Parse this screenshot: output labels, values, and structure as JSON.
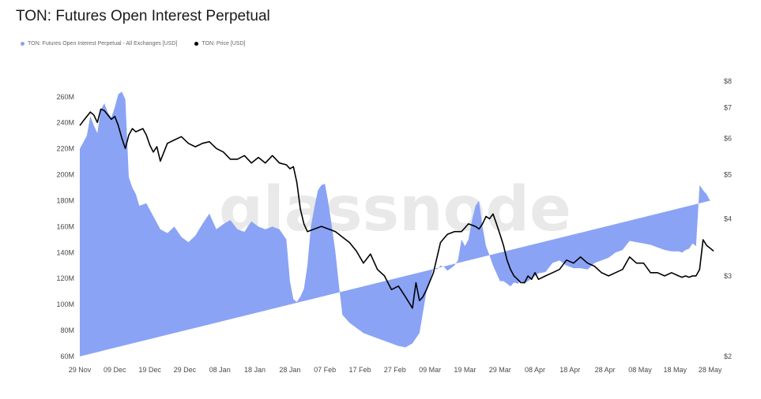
{
  "title": "TON: Futures Open Interest Perpetual",
  "legend": [
    {
      "label": "TON: Futures Open Interest Perpetual - All Exchanges [USD]",
      "color": "#8aa3f5"
    },
    {
      "label": "TON: Price [USD]",
      "color": "#000000"
    }
  ],
  "watermark": "glassnode",
  "chart_data": {
    "type": "area",
    "x_ticks": [
      "29 Nov",
      "09 Dec",
      "19 Dec",
      "29 Dec",
      "08 Jan",
      "18 Jan",
      "28 Jan",
      "07 Feb",
      "17 Feb",
      "27 Feb",
      "09 Mar",
      "19 Mar",
      "29 Mar",
      "08 Apr",
      "18 Apr",
      "28 Apr",
      "08 May",
      "18 May",
      "28 May"
    ],
    "left_axis": {
      "ticks": [
        "60M",
        "80M",
        "100M",
        "120M",
        "140M",
        "160M",
        "180M",
        "200M",
        "220M",
        "240M",
        "260M"
      ],
      "tick_values": [
        60,
        80,
        100,
        120,
        140,
        160,
        180,
        200,
        220,
        240,
        260
      ],
      "range": [
        60,
        272
      ],
      "unit": "M USD"
    },
    "right_axis": {
      "ticks": [
        "$2",
        "$3",
        "$4",
        "$5",
        "$6",
        "$7",
        "$8"
      ],
      "tick_values": [
        2,
        3,
        4,
        5,
        6,
        7,
        8
      ],
      "scale": "log",
      "range": [
        2,
        8
      ]
    },
    "series": [
      {
        "name": "TON: Futures Open Interest Perpetual - All Exchanges [USD]",
        "axis": "left",
        "style": "area",
        "color": "#8aa3f5",
        "x_day_offsets": [
          0,
          1,
          2,
          3,
          4,
          5,
          6,
          7,
          8,
          9,
          10,
          11,
          12,
          13,
          14,
          15,
          16,
          17,
          19,
          21,
          23,
          25,
          27,
          29,
          31,
          33,
          35,
          37,
          39,
          41,
          43,
          45,
          47,
          49,
          51,
          53,
          55,
          57,
          59,
          60,
          61,
          62,
          63,
          64,
          65,
          66,
          67,
          68,
          69,
          70,
          71,
          72,
          73,
          74,
          75,
          77,
          79,
          81,
          83,
          85,
          87,
          89,
          91,
          93,
          95,
          97,
          99,
          101,
          102,
          103,
          104,
          105,
          106,
          107,
          108,
          109,
          110,
          111,
          112,
          113,
          114,
          115,
          116,
          117,
          118,
          119,
          120,
          121,
          122,
          123,
          124,
          125,
          126,
          127,
          128,
          129,
          130,
          131,
          133,
          135,
          137,
          139,
          141,
          143,
          145,
          147,
          149,
          151,
          153,
          155,
          157,
          159,
          161,
          163,
          165,
          167,
          169,
          171,
          172,
          173,
          174,
          175,
          176,
          177,
          178,
          179,
          180,
          181
        ],
        "values": [
          220,
          225,
          230,
          245,
          238,
          232,
          250,
          255,
          248,
          244,
          252,
          262,
          264,
          258,
          198,
          190,
          185,
          176,
          178,
          168,
          158,
          155,
          160,
          152,
          148,
          153,
          162,
          170,
          158,
          162,
          165,
          158,
          156,
          164,
          160,
          158,
          160,
          158,
          150,
          118,
          104,
          102,
          106,
          112,
          130,
          160,
          175,
          188,
          192,
          193,
          178,
          160,
          140,
          115,
          92,
          86,
          82,
          78,
          76,
          74,
          72,
          70,
          68,
          67,
          70,
          78,
          110,
          128,
          127,
          130,
          129,
          126,
          128,
          130,
          134,
          150,
          145,
          150,
          165,
          176,
          180,
          160,
          145,
          138,
          130,
          124,
          118,
          118,
          116,
          114,
          117,
          116,
          118,
          116,
          118,
          120,
          122,
          124,
          125,
          132,
          134,
          130,
          128,
          128,
          127,
          132,
          134,
          136,
          140,
          142,
          149,
          148,
          147,
          146,
          144,
          142,
          141,
          141,
          140,
          142,
          143,
          147,
          145,
          192,
          188,
          185,
          180
        ]
      },
      {
        "name": "TON: Price [USD]",
        "axis": "right",
        "style": "line",
        "color": "#000000",
        "x_day_offsets": [
          0,
          1,
          2,
          3,
          4,
          5,
          6,
          7,
          8,
          9,
          10,
          11,
          12,
          13,
          14,
          15,
          16,
          17,
          18,
          19,
          20,
          21,
          22,
          23,
          25,
          27,
          29,
          31,
          33,
          35,
          37,
          39,
          41,
          43,
          45,
          47,
          49,
          51,
          53,
          55,
          57,
          59,
          60,
          61,
          62,
          63,
          64,
          65,
          67,
          69,
          71,
          73,
          75,
          77,
          79,
          81,
          83,
          85,
          87,
          89,
          91,
          93,
          95,
          96,
          97,
          98,
          99,
          101,
          103,
          105,
          107,
          109,
          111,
          113,
          114,
          115,
          116,
          117,
          118,
          119,
          120,
          121,
          122,
          123,
          124,
          125,
          126,
          127,
          128,
          129,
          130,
          131,
          133,
          135,
          137,
          139,
          141,
          143,
          145,
          147,
          149,
          151,
          153,
          155,
          157,
          159,
          161,
          163,
          165,
          167,
          169,
          171,
          172,
          173,
          174,
          175,
          176,
          177,
          178,
          179,
          180,
          181
        ],
        "values": [
          6.4,
          6.55,
          6.7,
          6.85,
          6.75,
          6.5,
          6.95,
          6.9,
          6.75,
          6.6,
          6.7,
          6.4,
          6.0,
          5.7,
          6.1,
          6.3,
          6.2,
          6.25,
          6.3,
          6.1,
          5.8,
          5.6,
          5.75,
          5.35,
          5.85,
          5.95,
          6.05,
          5.85,
          5.75,
          5.85,
          5.9,
          5.7,
          5.6,
          5.4,
          5.4,
          5.5,
          5.3,
          5.45,
          5.3,
          5.5,
          5.3,
          5.25,
          5.15,
          5.2,
          4.8,
          4.2,
          3.9,
          3.75,
          3.8,
          3.85,
          3.8,
          3.75,
          3.65,
          3.55,
          3.4,
          3.2,
          3.35,
          3.1,
          3.0,
          2.8,
          2.85,
          2.7,
          2.55,
          2.9,
          2.65,
          2.7,
          2.8,
          3.05,
          3.55,
          3.7,
          3.75,
          3.75,
          3.9,
          3.85,
          3.8,
          3.9,
          4.05,
          4.0,
          4.1,
          3.9,
          3.7,
          3.5,
          3.25,
          3.1,
          3.0,
          2.95,
          2.9,
          2.9,
          3.0,
          2.95,
          3.05,
          2.95,
          3.0,
          3.05,
          3.1,
          3.25,
          3.2,
          3.3,
          3.2,
          3.15,
          3.05,
          3.0,
          3.05,
          3.1,
          3.3,
          3.2,
          3.2,
          3.05,
          3.05,
          3.0,
          3.05,
          3.0,
          2.98,
          3.0,
          2.98,
          3.0,
          3.0,
          3.1,
          3.6,
          3.5,
          3.45,
          3.4
        ]
      }
    ]
  }
}
